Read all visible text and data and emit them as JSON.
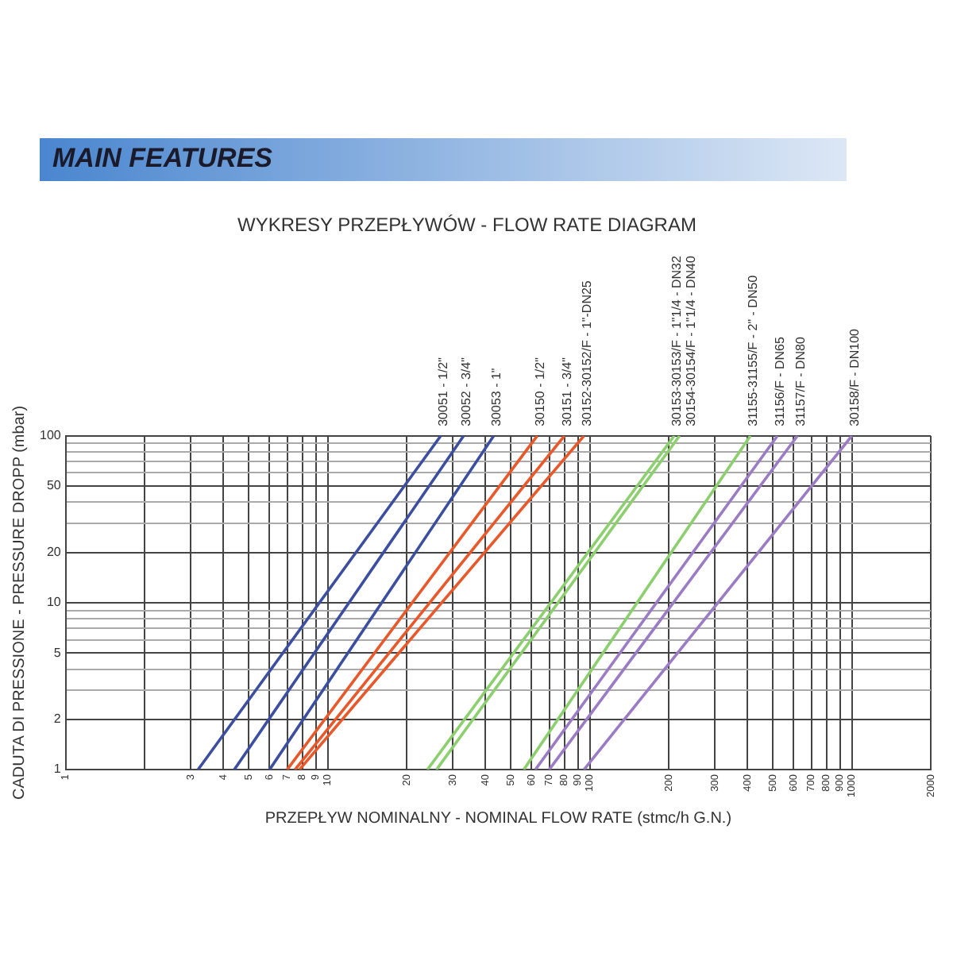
{
  "chart_data": {
    "type": "line",
    "title": "WYKRESY PRZEPŁYWÓW - FLOW RATE DIAGRAM",
    "xlabel": "PRZEPŁYW NOMINALNY - NOMINAL FLOW RATE (stmc/h G.N.)",
    "ylabel": "CADUTA DI PRESSIONE - PRESSURE DROPP (mbar)",
    "annotations": [
      "MAIN FEATURES"
    ],
    "log": "xy",
    "grid": true,
    "legend": false,
    "marker": "none",
    "line_style": "solid",
    "xlim": [
      1,
      2000
    ],
    "xticks": [
      1,
      {
        "value": 2,
        "label": null
      },
      3,
      4,
      5,
      6,
      7,
      8,
      9,
      10,
      20,
      30,
      40,
      50,
      60,
      70,
      80,
      90,
      100,
      200,
      300,
      400,
      500,
      600,
      700,
      800,
      900,
      1000,
      2000
    ],
    "ylim": [
      1,
      100
    ],
    "yticks": [
      1,
      2,
      {
        "value": 3,
        "label": null
      },
      {
        "value": 4,
        "label": null
      },
      5,
      {
        "value": 6,
        "label": null
      },
      {
        "value": 7,
        "label": null
      },
      {
        "value": 8,
        "label": null
      },
      {
        "value": 9,
        "label": null
      },
      10,
      20,
      {
        "value": 30,
        "label": null
      },
      {
        "value": 40,
        "label": null
      },
      50,
      {
        "value": 60,
        "label": null
      },
      {
        "value": 70,
        "label": null
      },
      {
        "value": 80,
        "label": null
      },
      {
        "value": 90,
        "label": null
      },
      100
    ],
    "series": [
      {
        "name": "30051 - 1/2\"",
        "color": "#3c4ea0",
        "x": [
          3.2,
          27
        ],
        "values": [
          1,
          100
        ]
      },
      {
        "name": "30052 - 3/4\"",
        "color": "#3c4ea0",
        "x": [
          4.4,
          33
        ],
        "values": [
          1,
          100
        ]
      },
      {
        "name": "30053 - 1\"",
        "color": "#3c4ea0",
        "x": [
          6,
          43
        ],
        "values": [
          1,
          100
        ]
      },
      {
        "name": "30150 - 1/2\"",
        "color": "#e8582a",
        "x": [
          7,
          63
        ],
        "values": [
          1,
          100
        ]
      },
      {
        "name": "30151 - 3/4\"",
        "color": "#e8582a",
        "x": [
          7.5,
          80
        ],
        "values": [
          1,
          100
        ]
      },
      {
        "name": "30152-30152/F - 1\"-DN25",
        "color": "#e8582a",
        "x": [
          7.8,
          95
        ],
        "values": [
          1,
          100
        ]
      },
      {
        "name": "30153-30153/F - 1\"1/4 - DN32",
        "color": "#8ccf6e",
        "x": [
          24,
          210
        ],
        "values": [
          1,
          100
        ]
      },
      {
        "name": "30154-30154/F - 1\"1/4 - DN40",
        "color": "#8ccf6e",
        "x": [
          26,
          220
        ],
        "values": [
          1,
          100
        ]
      },
      {
        "name": "31155-31155/F - 2\" - DN50",
        "color": "#8ccf6e",
        "x": [
          56,
          410
        ],
        "values": [
          1,
          100
        ]
      },
      {
        "name": "31156/F - DN65",
        "color": "#9b7cc4",
        "x": [
          62,
          520
        ],
        "values": [
          1,
          100
        ]
      },
      {
        "name": "31157/F - DN80",
        "color": "#9b7cc4",
        "x": [
          70,
          620
        ],
        "values": [
          1,
          100
        ]
      },
      {
        "name": "30158/F - DN100",
        "color": "#9b7cc4",
        "x": [
          95,
          1000
        ],
        "values": [
          1,
          100
        ]
      }
    ]
  }
}
